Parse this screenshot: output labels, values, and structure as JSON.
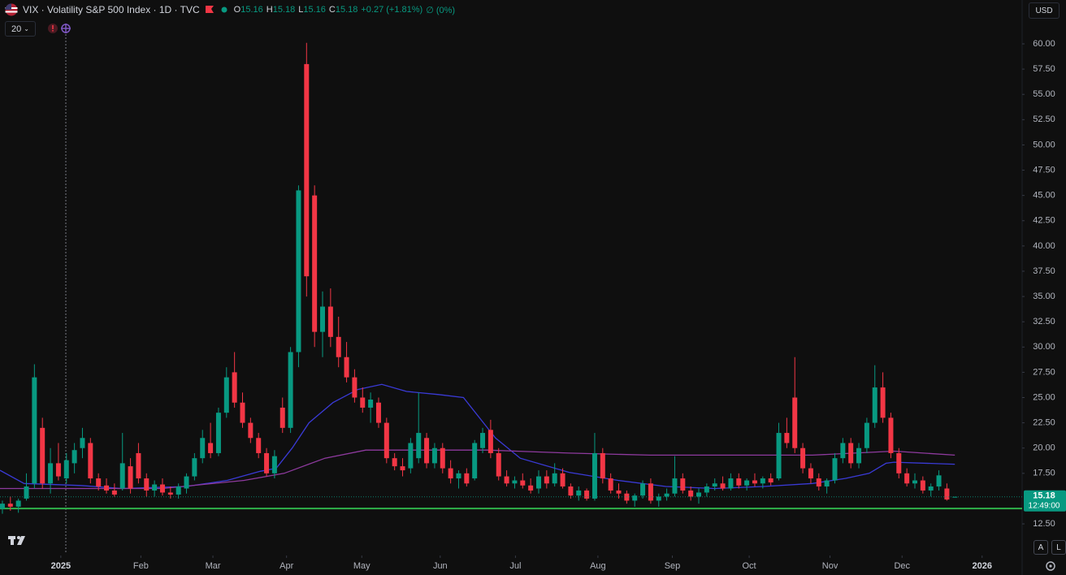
{
  "header": {
    "symbol": "VIX · Volatility S&P 500 Index · 1D · TVC",
    "ohlc_labels": [
      "O",
      "H",
      "L",
      "C"
    ],
    "change": "+0.27 (+1.81%)",
    "volume": "∅ (0%)",
    "ma_length": 20,
    "currency": "USD",
    "countdown": "12:49:00",
    "buttons": [
      "A",
      "L"
    ]
  },
  "chart_data": {
    "type": "candlestick",
    "open": [
      14.0,
      14.5,
      14.2,
      15.0,
      16.5,
      22.0,
      16.5,
      18.5,
      17.0,
      18.5,
      20.0,
      20.5,
      17.0,
      16.3,
      15.8,
      16.0,
      18.2,
      19.5,
      17.0,
      15.8,
      16.4,
      15.6,
      15.4,
      16.0,
      17.2,
      19.0,
      20.5,
      19.5,
      23.5,
      27.5,
      24.5,
      22.5,
      21.0,
      19.5,
      17.5,
      24.0,
      22.0,
      29.5,
      58.0,
      45.0,
      31.5,
      34.0,
      31.0,
      29.0,
      27.0,
      25.0,
      24.0,
      24.5,
      22.5,
      19.0,
      18.2,
      18.0,
      19.0,
      21.0,
      18.5,
      20.0,
      18.0,
      17.0,
      17.5,
      17.0,
      20.0,
      21.8,
      19.5,
      17.2,
      16.5,
      16.8,
      16.3,
      16.0,
      17.2,
      16.5,
      17.5,
      16.2,
      15.3,
      15.8,
      15.0,
      19.5,
      17.0,
      15.8,
      15.5,
      14.8,
      15.3,
      16.5,
      14.8,
      15.2,
      15.5,
      17.0,
      15.8,
      15.2,
      15.6,
      16.2,
      16.5,
      16.0,
      17.0,
      16.3,
      16.8,
      16.5,
      17.0,
      17.0,
      21.5,
      25.0,
      20.0,
      18.0,
      17.0,
      16.2,
      16.8,
      19.0,
      20.5,
      18.5,
      20.0,
      22.5,
      26.0,
      23.0,
      19.5,
      17.5,
      16.5,
      16.8,
      15.8,
      16.2,
      16.0,
      15.16
    ],
    "high": [
      14.8,
      15.2,
      15.0,
      17.5,
      28.3,
      23.0,
      20.0,
      20.5,
      19.5,
      20.5,
      22.0,
      21.0,
      17.5,
      17.0,
      16.5,
      21.5,
      19.0,
      20.5,
      17.5,
      16.8,
      17.0,
      16.2,
      16.5,
      17.5,
      19.5,
      21.8,
      22.5,
      24.0,
      28.0,
      29.5,
      25.5,
      23.0,
      21.5,
      20.0,
      19.8,
      25.0,
      30.0,
      46.0,
      60.1,
      46.0,
      35.5,
      35.8,
      33.0,
      30.5,
      27.8,
      26.0,
      25.5,
      25.0,
      23.0,
      19.5,
      19.0,
      21.0,
      25.5,
      21.5,
      20.5,
      20.5,
      18.8,
      17.8,
      18.0,
      20.8,
      22.0,
      22.8,
      20.0,
      17.8,
      17.2,
      17.5,
      17.0,
      17.8,
      17.8,
      18.5,
      18.0,
      16.5,
      16.2,
      16.0,
      21.5,
      20.0,
      17.5,
      16.5,
      15.8,
      15.5,
      16.8,
      17.0,
      15.5,
      16.0,
      19.2,
      17.5,
      16.2,
      16.0,
      16.5,
      17.0,
      17.2,
      17.5,
      17.5,
      17.0,
      17.5,
      17.2,
      17.5,
      22.5,
      23.0,
      29.0,
      20.5,
      18.5,
      17.5,
      17.0,
      19.5,
      21.0,
      21.0,
      20.5,
      23.0,
      28.2,
      27.5,
      23.5,
      20.0,
      18.0,
      17.5,
      17.2,
      16.5,
      17.8,
      16.5,
      15.18
    ],
    "low": [
      13.5,
      13.8,
      13.6,
      14.8,
      16.0,
      16.0,
      15.5,
      16.8,
      16.5,
      17.5,
      19.0,
      16.5,
      15.8,
      15.5,
      15.2,
      15.8,
      15.5,
      16.5,
      15.2,
      15.2,
      15.3,
      15.0,
      15.0,
      15.5,
      16.8,
      18.5,
      19.0,
      19.2,
      23.0,
      24.0,
      22.0,
      20.5,
      19.0,
      17.2,
      17.0,
      21.5,
      21.5,
      28.0,
      35.0,
      30.0,
      29.0,
      30.0,
      28.0,
      26.5,
      24.5,
      23.5,
      22.5,
      22.0,
      18.5,
      17.8,
      17.2,
      17.5,
      18.5,
      18.0,
      18.0,
      17.5,
      16.5,
      16.0,
      16.2,
      16.8,
      19.5,
      19.0,
      16.8,
      16.2,
      16.0,
      16.0,
      15.5,
      15.5,
      16.0,
      16.2,
      16.0,
      15.0,
      14.8,
      14.8,
      14.8,
      16.5,
      15.5,
      15.0,
      14.5,
      14.2,
      15.0,
      14.5,
      14.2,
      14.8,
      15.2,
      15.5,
      14.8,
      14.5,
      15.2,
      15.8,
      15.8,
      15.8,
      16.0,
      15.8,
      16.2,
      16.0,
      16.3,
      16.8,
      20.0,
      19.5,
      17.5,
      16.5,
      15.8,
      15.5,
      16.5,
      18.5,
      18.0,
      18.0,
      19.5,
      22.0,
      22.5,
      19.0,
      17.0,
      16.2,
      16.0,
      15.5,
      15.2,
      15.8,
      14.8,
      15.16
    ],
    "close": [
      14.5,
      14.2,
      14.8,
      16.2,
      27.0,
      16.5,
      18.5,
      17.2,
      18.8,
      19.8,
      21.0,
      17.0,
      16.2,
      15.8,
      15.4,
      18.5,
      16.0,
      17.0,
      15.8,
      16.4,
      15.6,
      15.4,
      16.2,
      17.2,
      19.0,
      21.0,
      19.5,
      23.5,
      27.0,
      24.5,
      22.5,
      21.0,
      19.5,
      17.5,
      19.2,
      22.0,
      29.5,
      45.5,
      37.0,
      31.5,
      34.0,
      31.0,
      29.0,
      27.0,
      25.0,
      24.0,
      24.8,
      22.5,
      19.0,
      18.2,
      17.8,
      20.5,
      21.5,
      18.5,
      20.0,
      18.0,
      17.0,
      17.5,
      16.5,
      20.5,
      21.5,
      19.5,
      17.2,
      16.5,
      16.8,
      16.3,
      15.8,
      17.2,
      16.5,
      17.5,
      16.2,
      15.3,
      15.8,
      15.0,
      19.5,
      17.0,
      15.8,
      15.5,
      14.8,
      15.3,
      16.5,
      14.8,
      15.2,
      15.5,
      17.0,
      15.8,
      15.2,
      15.6,
      16.2,
      16.5,
      16.0,
      17.0,
      16.3,
      16.8,
      16.5,
      17.0,
      16.6,
      21.5,
      20.5,
      20.0,
      18.0,
      17.0,
      16.2,
      16.8,
      19.0,
      20.5,
      18.5,
      20.0,
      22.5,
      26.0,
      23.0,
      19.5,
      17.5,
      16.5,
      16.8,
      15.8,
      16.2,
      17.3,
      14.91,
      15.18
    ],
    "up_color": "#089981",
    "down_color": "#f23645",
    "moving_averages": [
      {
        "color": "#3a3ad6",
        "x": [
          -0.3,
          2.7,
          9.8,
          14.9,
          23,
          28.1,
          32.2,
          34.2,
          36.2,
          38.3,
          41.3,
          44.4,
          47.4,
          50.5,
          54.5,
          57.6,
          59.6,
          61.6,
          64.7,
          70.8,
          76.9,
          82.9,
          89,
          95.1,
          101.2,
          105.3,
          108.3,
          110.4,
          111.4,
          119
        ],
        "values": [
          17.8,
          16.5,
          16.3,
          16,
          16.2,
          16.8,
          17.7,
          18,
          20,
          22.5,
          24.5,
          25.8,
          26.3,
          25.6,
          25.3,
          25,
          23,
          21,
          19,
          17.6,
          16.8,
          16.2,
          16,
          16.2,
          16.5,
          17,
          17.5,
          18.5,
          18.6,
          18.4
        ]
      },
      {
        "color": "#8e3a9e",
        "x": [
          -0.3,
          20,
          30.2,
          35.2,
          40.3,
          45.4,
          50.5,
          60.6,
          70.8,
          80.9,
          91.1,
          101.2,
          111.4,
          119
        ],
        "values": [
          16,
          16,
          16.8,
          17.5,
          19,
          19.8,
          19.8,
          19.8,
          19.5,
          19.3,
          19.3,
          19.3,
          19.7,
          19.3
        ]
      }
    ],
    "level": {
      "value": 14.02,
      "color": "#2fb14a"
    },
    "grid": false,
    "xlim": [
      -0.3,
      127.4
    ],
    "xticks": [
      {
        "value": 7.3,
        "label": "2025"
      },
      {
        "value": 17.3,
        "label": "Feb"
      },
      {
        "value": 26.3,
        "label": "Mar"
      },
      {
        "value": 35.5,
        "label": "Apr"
      },
      {
        "value": 44.9,
        "label": "May"
      },
      {
        "value": 54.7,
        "label": "Jun"
      },
      {
        "value": 64.1,
        "label": "Jul"
      },
      {
        "value": 74.4,
        "label": "Aug"
      },
      {
        "value": 83.7,
        "label": "Sep"
      },
      {
        "value": 93.3,
        "label": "Oct"
      },
      {
        "value": 103.4,
        "label": "Nov"
      },
      {
        "value": 112.4,
        "label": "Dec"
      },
      {
        "value": 122.4,
        "label": "2026"
      }
    ],
    "ylim": [
      11.7,
      64.34
    ],
    "yticks": [
      {
        "value": 12.5,
        "label": "12.50"
      },
      {
        "value": 17.5,
        "label": "17.50"
      },
      {
        "value": 20,
        "label": "20.00"
      },
      {
        "value": 22.5,
        "label": "22.50"
      },
      {
        "value": 25,
        "label": "25.00"
      },
      {
        "value": 27.5,
        "label": "27.50"
      },
      {
        "value": 30,
        "label": "30.00"
      },
      {
        "value": 32.5,
        "label": "32.50"
      },
      {
        "value": 35,
        "label": "35.00"
      },
      {
        "value": 37.5,
        "label": "37.50"
      },
      {
        "value": 40,
        "label": "40.00"
      },
      {
        "value": 42.5,
        "label": "42.50"
      },
      {
        "value": 45,
        "label": "45.00"
      },
      {
        "value": 47.5,
        "label": "47.50"
      },
      {
        "value": 50,
        "label": "50.00"
      },
      {
        "value": 52.5,
        "label": "52.50"
      },
      {
        "value": 55,
        "label": "55.00"
      },
      {
        "value": 57.5,
        "label": "57.50"
      },
      {
        "value": 60,
        "label": "60.00"
      }
    ]
  }
}
